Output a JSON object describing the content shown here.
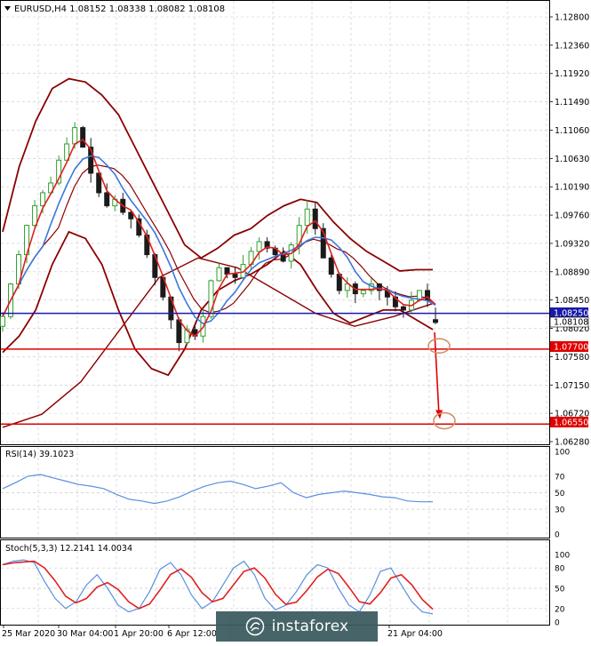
{
  "header": {
    "symbol_line": "EURUSD,H4  1.08152 1.08338 1.08082 1.08108",
    "triangle_icon": "dropdown-triangle-icon"
  },
  "colors": {
    "background": "#ffffff",
    "grid": "#c8c8c8",
    "candle_up": "#2e9e2e",
    "candle_down": "#1a1a1a",
    "bollinger": "#8b0000",
    "ma_fast": "#e02020",
    "ma_slow": "#3b78e0",
    "level_blue": "#1a1aa8",
    "level_red": "#e00000",
    "target_circle": "#d2906a",
    "oscillator_line": "#5a8fe0",
    "stoch_signal": "#e02020",
    "watermark_bg": "#3a5a5e"
  },
  "price_axis_labels": [
    "1.12800",
    "1.12360",
    "1.11920",
    "1.11490",
    "1.11060",
    "1.10630",
    "1.10190",
    "1.09760",
    "1.09320",
    "1.08890",
    "1.08450",
    "1.08020",
    "1.07580",
    "1.07150",
    "1.06720",
    "1.06280"
  ],
  "price_tags": {
    "blue_level": "1.08250",
    "current_price": "1.08108",
    "red_level_1": "1.07700",
    "red_level_2": "1.06550"
  },
  "rsi_panel": {
    "label": "RSI(14) 39.1023",
    "axis_labels": [
      "100",
      "70",
      "50",
      "30",
      "0"
    ]
  },
  "stoch_panel": {
    "label": "Stoch(5,3,3) 12.2141 14.0034",
    "axis_labels": [
      "100",
      "80",
      "50",
      "20",
      "0"
    ]
  },
  "time_axis_labels": [
    "25 Mar 2020",
    "30 Mar 04:00",
    "1 Apr 20:00",
    "6 Apr 12:00",
    "21 Apr 04:00"
  ],
  "watermark": {
    "text": "instaforex"
  },
  "chart_data": {
    "type": "candlestick",
    "title": "EURUSD,H4",
    "last_bar": {
      "open": 1.08152,
      "high": 1.08338,
      "low": 1.08082,
      "close": 1.08108
    },
    "ylim": [
      1.062,
      1.1285
    ],
    "close_path": [
      1.082,
      1.087,
      1.0915,
      1.096,
      1.099,
      1.101,
      1.1025,
      1.106,
      1.1085,
      1.111,
      1.108,
      1.104,
      1.101,
      1.099,
      1.1,
      1.098,
      1.097,
      1.0945,
      1.0915,
      1.088,
      1.085,
      1.0815,
      1.078,
      1.08,
      1.079,
      1.082,
      1.0875,
      1.0895,
      1.0885,
      1.088,
      1.09,
      1.092,
      1.0935,
      1.0925,
      1.0915,
      1.0905,
      1.093,
      1.096,
      1.0985,
      1.0955,
      1.091,
      1.0885,
      1.086,
      1.087,
      1.0855,
      1.086,
      1.087,
      1.086,
      1.085,
      1.0835,
      1.083,
      1.0845,
      1.086,
      1.0845,
      1.0811
    ],
    "bollinger_upper": [
      1.095,
      1.105,
      1.112,
      1.117,
      1.1185,
      1.118,
      1.116,
      1.113,
      1.108,
      1.103,
      1.098,
      1.093,
      1.091,
      1.0925,
      1.0945,
      1.0955,
      1.0975,
      1.099,
      1.1,
      1.0995,
      1.0965,
      1.094,
      1.092,
      1.0905,
      1.089,
      1.0892,
      1.0892
    ],
    "bollinger_lower": [
      1.0765,
      1.079,
      1.083,
      1.09,
      1.095,
      1.094,
      1.09,
      1.083,
      1.077,
      1.074,
      1.073,
      1.077,
      1.083,
      1.086,
      1.0875,
      1.0885,
      1.09,
      1.092,
      1.09,
      1.086,
      1.0825,
      1.081,
      1.082,
      1.083,
      1.083,
      1.0815,
      1.08
    ],
    "outer_envelope": [
      1.065,
      1.067,
      1.072,
      1.08,
      1.088,
      1.091,
      1.0895,
      1.086,
      1.0825,
      1.0805,
      1.082,
      1.084
    ],
    "levels": [
      {
        "name": "1.08250",
        "value": 1.0825,
        "color": "blue"
      },
      {
        "name": "1.07700",
        "value": 1.077,
        "color": "red"
      },
      {
        "name": "1.06550",
        "value": 1.0655,
        "color": "red"
      }
    ],
    "projection": {
      "from": 1.0812,
      "via": 1.0775,
      "to": 1.066
    },
    "rsi": {
      "last": 39.1023,
      "ylim": [
        0,
        100
      ],
      "levels": [
        70,
        50,
        30
      ],
      "values": [
        55,
        62,
        70,
        72,
        68,
        64,
        60,
        58,
        55,
        48,
        42,
        40,
        37,
        40,
        45,
        52,
        58,
        62,
        64,
        60,
        55,
        58,
        62,
        50,
        44,
        48,
        50,
        52,
        50,
        48,
        45,
        44,
        40,
        39,
        39
      ]
    },
    "stoch": {
      "main": 12.2141,
      "signal": 14.0034,
      "ylim": [
        0,
        100
      ],
      "levels": [
        80,
        50,
        20
      ],
      "values": [
        85,
        90,
        92,
        88,
        60,
        35,
        20,
        30,
        55,
        70,
        50,
        25,
        15,
        20,
        45,
        78,
        88,
        70,
        40,
        20,
        30,
        55,
        80,
        90,
        70,
        35,
        18,
        25,
        45,
        70,
        85,
        80,
        50,
        25,
        15,
        40,
        75,
        80,
        55,
        30,
        15,
        12
      ]
    }
  }
}
